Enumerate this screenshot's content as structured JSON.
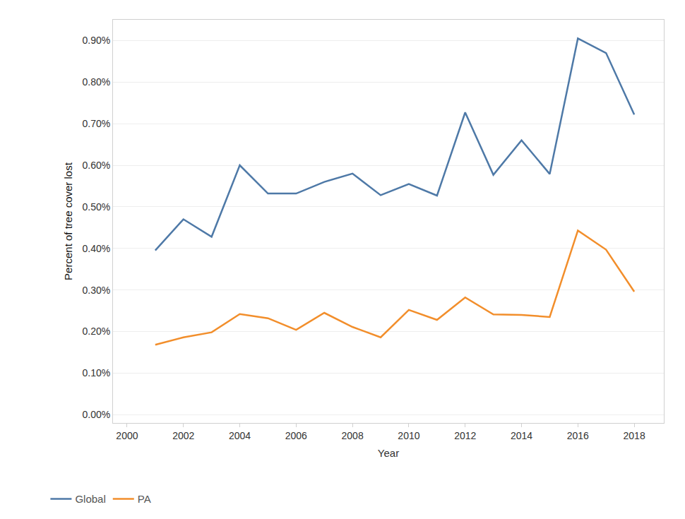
{
  "chart_data": {
    "type": "line",
    "x_label": "Year",
    "y_label": "Percent of tree cover lost",
    "x": [
      2001,
      2002,
      2003,
      2004,
      2005,
      2006,
      2007,
      2008,
      2009,
      2010,
      2011,
      2012,
      2013,
      2014,
      2015,
      2016,
      2017,
      2018
    ],
    "series": [
      {
        "name": "Global",
        "color": "#4e79a7",
        "values": [
          0.395,
          0.47,
          0.428,
          0.6,
          0.532,
          0.532,
          0.56,
          0.58,
          0.528,
          0.555,
          0.527,
          0.727,
          0.577,
          0.66,
          0.579,
          0.905,
          0.87,
          0.722
        ]
      },
      {
        "name": "PA",
        "color": "#f28e2b",
        "values": [
          0.168,
          0.186,
          0.198,
          0.242,
          0.232,
          0.204,
          0.245,
          0.211,
          0.186,
          0.252,
          0.228,
          0.282,
          0.241,
          0.24,
          0.235,
          0.443,
          0.397,
          0.296
        ]
      }
    ],
    "xlim": [
      1999.5,
      2019.05
    ],
    "xticks": [
      2000,
      2002,
      2004,
      2006,
      2008,
      2010,
      2012,
      2014,
      2016,
      2018
    ],
    "ylim": [
      -0.02,
      0.95
    ],
    "yticks": [
      {
        "value": 0,
        "label": "0.00%"
      },
      {
        "value": 0.1,
        "label": "0.10%"
      },
      {
        "value": 0.2,
        "label": "0.20%"
      },
      {
        "value": 0.3,
        "label": "0.30%"
      },
      {
        "value": 0.4,
        "label": "0.40%"
      },
      {
        "value": 0.5,
        "label": "0.50%"
      },
      {
        "value": 0.6,
        "label": "0.60%"
      },
      {
        "value": 0.7,
        "label": "0.70%"
      },
      {
        "value": 0.8,
        "label": "0.80%"
      },
      {
        "value": 0.9,
        "label": "0.90%"
      }
    ],
    "grid": true,
    "legend": "bottom left"
  }
}
